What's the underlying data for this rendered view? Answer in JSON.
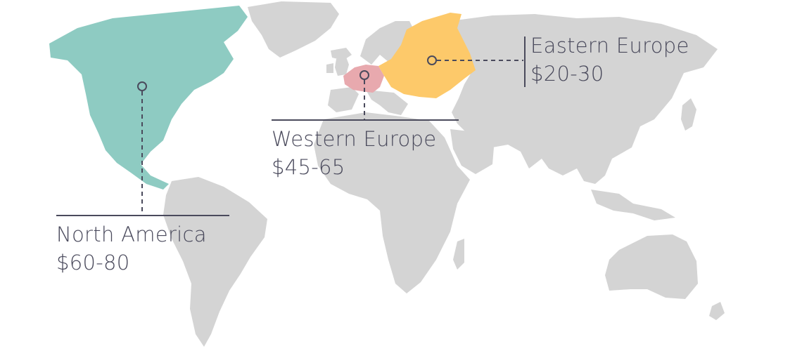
{
  "colors": {
    "land": "#d4d4d4",
    "north_america": "#8ecbc2",
    "western_europe": "#e8a9ae",
    "eastern_europe": "#fdc96a",
    "ink": "#4a4a5c"
  },
  "regions": [
    {
      "key": "north_america",
      "name": "North America",
      "price": "$60-80"
    },
    {
      "key": "western_europe",
      "name": "Western Europe",
      "price": "$45-65"
    },
    {
      "key": "eastern_europe",
      "name": "Eastern Europe",
      "price": "$20-30"
    }
  ]
}
